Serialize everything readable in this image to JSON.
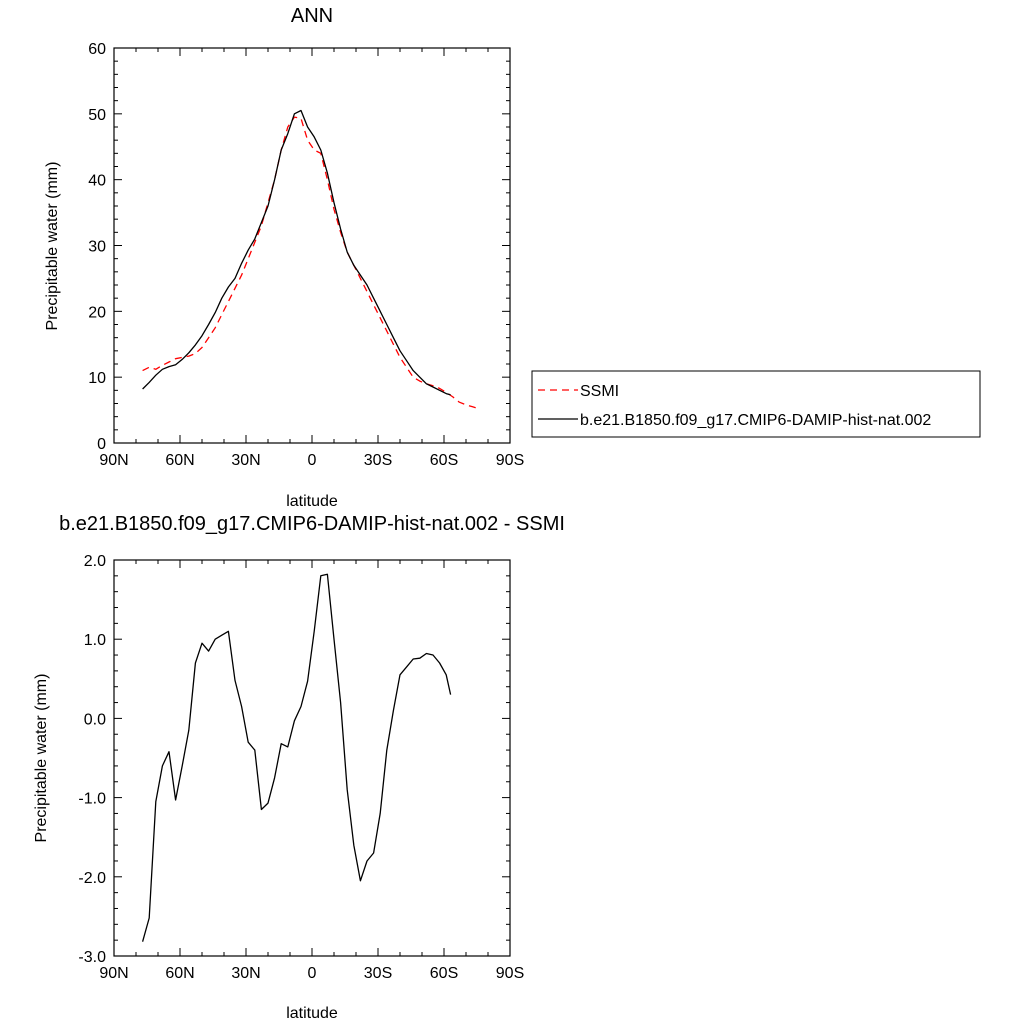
{
  "chart_data": [
    {
      "type": "line",
      "title": "ANN",
      "xlabel": "latitude",
      "ylabel": "Precipitable water (mm)",
      "xlim": [
        90,
        -90
      ],
      "ylim": [
        0,
        60
      ],
      "x_ticks": [
        90,
        60,
        30,
        0,
        -30,
        -60,
        -90
      ],
      "x_tick_labels": [
        "90N",
        "60N",
        "30N",
        "0",
        "30S",
        "60S",
        "90S"
      ],
      "y_ticks": [
        0,
        10,
        20,
        30,
        40,
        50,
        60
      ],
      "y_tick_labels": [
        "0",
        "10",
        "20",
        "30",
        "40",
        "50",
        "60"
      ],
      "grid": false,
      "legend": "right",
      "series": [
        {
          "name": "SSMI",
          "color": "#ff0000",
          "dash": "dashed",
          "x": [
            77,
            74,
            71,
            68,
            65,
            62,
            59,
            56,
            53,
            50,
            47,
            44,
            41,
            38,
            35,
            32,
            29,
            26,
            23,
            20,
            17,
            14,
            11,
            8,
            5,
            2,
            -1,
            -4,
            -7,
            -10,
            -13,
            -16,
            -19,
            -22,
            -25,
            -28,
            -31,
            -34,
            -37,
            -40,
            -43,
            -46,
            -49,
            -52,
            -55,
            -58,
            -61,
            -64,
            -67,
            -70,
            -73,
            -75
          ],
          "y": [
            11.0,
            11.5,
            11.2,
            11.8,
            12.3,
            12.8,
            13.0,
            13.2,
            13.6,
            14.5,
            16.0,
            17.5,
            19.5,
            21.5,
            23.5,
            25.5,
            28.0,
            30.5,
            33.0,
            36.5,
            40.0,
            44.5,
            48.0,
            49.5,
            49.3,
            46.0,
            44.5,
            44.0,
            40.0,
            35.5,
            32.0,
            29.0,
            27.0,
            25.0,
            23.0,
            21.0,
            19.0,
            17.0,
            15.0,
            13.0,
            11.5,
            10.0,
            9.4,
            9.0,
            8.7,
            8.3,
            7.7,
            7.0,
            6.2,
            5.8,
            5.5,
            5.3
          ]
        },
        {
          "name": "b.e21.B1850.f09_g17.CMIP6-DAMIP-hist-nat.002",
          "color": "#000000",
          "dash": "solid",
          "x": [
            77,
            74,
            71,
            68,
            65,
            62,
            59,
            56,
            53,
            50,
            47,
            44,
            41,
            38,
            35,
            32,
            29,
            26,
            23,
            20,
            17,
            14,
            11,
            8,
            5,
            2,
            -1,
            -4,
            -7,
            -10,
            -13,
            -16,
            -19,
            -22,
            -25,
            -28,
            -31,
            -34,
            -37,
            -40,
            -43,
            -46,
            -49,
            -52,
            -55,
            -58,
            -61,
            -63
          ],
          "y": [
            8.2,
            9.2,
            10.3,
            11.2,
            11.6,
            11.9,
            12.7,
            13.7,
            14.9,
            16.3,
            18.0,
            19.8,
            22.0,
            23.7,
            25.0,
            27.3,
            29.3,
            31.0,
            33.5,
            36.0,
            40.0,
            44.5,
            47.0,
            50.0,
            50.5,
            48.0,
            46.5,
            44.5,
            41.0,
            36.5,
            32.5,
            29.0,
            27.0,
            25.5,
            24.0,
            22.0,
            20.0,
            18.0,
            16.0,
            14.0,
            12.5,
            11.0,
            10.0,
            9.0,
            8.5,
            8.0,
            7.5,
            7.3
          ]
        }
      ]
    },
    {
      "type": "line",
      "title": "b.e21.B1850.f09_g17.CMIP6-DAMIP-hist-nat.002 - SSMI",
      "xlabel": "latitude",
      "ylabel": "Precipitable water (mm)",
      "xlim": [
        90,
        -90
      ],
      "ylim": [
        -3.0,
        2.0
      ],
      "x_ticks": [
        90,
        60,
        30,
        0,
        -30,
        -60,
        -90
      ],
      "x_tick_labels": [
        "90N",
        "60N",
        "30N",
        "0",
        "30S",
        "60S",
        "90S"
      ],
      "y_ticks": [
        -3.0,
        -2.0,
        -1.0,
        0.0,
        1.0,
        2.0
      ],
      "y_tick_labels": [
        "-3.0",
        "-2.0",
        "-1.0",
        "0.0",
        "1.0",
        "2.0"
      ],
      "grid": false,
      "series": [
        {
          "color": "#000000",
          "dash": "solid",
          "x": [
            77,
            74,
            71,
            68,
            65,
            62,
            59,
            56,
            53,
            50,
            47,
            44,
            41,
            38,
            35,
            32,
            29,
            26,
            23,
            20,
            17,
            14,
            11,
            8,
            5,
            2,
            -1,
            -4,
            -7,
            -10,
            -13,
            -16,
            -19,
            -22,
            -25,
            -28,
            -31,
            -34,
            -37,
            -40,
            -43,
            -46,
            -49,
            -52,
            -55,
            -58,
            -61,
            -63
          ],
          "y": [
            -2.82,
            -2.52,
            -1.05,
            -0.6,
            -0.42,
            -1.03,
            -0.6,
            -0.15,
            0.7,
            0.95,
            0.85,
            1.0,
            1.05,
            1.1,
            0.48,
            0.15,
            -0.3,
            -0.4,
            -1.15,
            -1.07,
            -0.75,
            -0.32,
            -0.36,
            -0.03,
            0.15,
            0.47,
            1.1,
            1.8,
            1.82,
            1.0,
            0.2,
            -0.9,
            -1.6,
            -2.05,
            -1.8,
            -1.7,
            -1.2,
            -0.4,
            0.1,
            0.55,
            0.65,
            0.75,
            0.76,
            0.82,
            0.8,
            0.7,
            0.55,
            0.3
          ]
        }
      ]
    }
  ]
}
